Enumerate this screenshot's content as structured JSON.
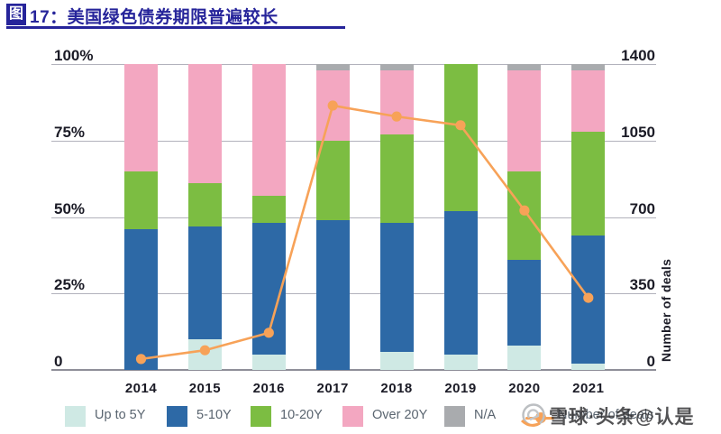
{
  "title": {
    "badge": "图",
    "text": "17：美国绿色债券期限普遍较长"
  },
  "chart_data": {
    "type": "bar",
    "subtype": "stacked-percent-bars-with-line-overlay",
    "title": "美国绿色债券期限普遍较长",
    "categories": [
      "2014",
      "2015",
      "2016",
      "2017",
      "2018",
      "2019",
      "2020",
      "2021"
    ],
    "stack_unit": "%",
    "series": [
      {
        "name": "Up to 5Y",
        "color": "#cfe9e4",
        "values": [
          0,
          10,
          5,
          0,
          6,
          5,
          8,
          2
        ]
      },
      {
        "name": "5-10Y",
        "color": "#2d69a6",
        "values": [
          46,
          37,
          43,
          49,
          42,
          47,
          28,
          42
        ]
      },
      {
        "name": "10-20Y",
        "color": "#7cbd42",
        "values": [
          19,
          14,
          9,
          26,
          29,
          48,
          29,
          34
        ]
      },
      {
        "name": "Over 20Y",
        "color": "#f3a7c1",
        "values": [
          35,
          39,
          43,
          23,
          21,
          0,
          33,
          20
        ]
      },
      {
        "name": "N/A",
        "color": "#a9abae",
        "values": [
          0,
          0,
          0,
          2,
          2,
          0,
          2,
          2
        ]
      }
    ],
    "line_series": {
      "name": "Number of deals",
      "color": "#f7a258",
      "axis": "right",
      "values": [
        50,
        90,
        170,
        1210,
        1160,
        1120,
        730,
        330
      ]
    },
    "left_axis": {
      "ticks": [
        "100%",
        "75%",
        "50%",
        "25%",
        "0"
      ],
      "min": 0,
      "max": 100,
      "grid": true
    },
    "right_axis": {
      "ticks": [
        "1400",
        "1050",
        "700",
        "350",
        "0"
      ],
      "min": 0,
      "max": 1400,
      "title": "Number of deals"
    },
    "legend_position": "bottom"
  },
  "watermark": {
    "text": "雪球·头条@认是",
    "logo": "xueqiu-logo"
  }
}
